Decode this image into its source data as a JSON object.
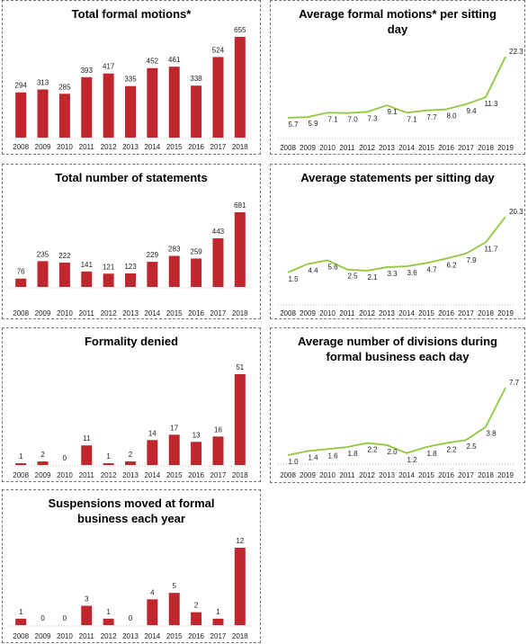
{
  "chart_data": [
    {
      "type": "bar",
      "title": "Total formal motions*",
      "color": "#c0272d",
      "categories": [
        "2008",
        "2009",
        "2010",
        "2011",
        "2012",
        "2013",
        "2014",
        "2015",
        "2016",
        "2017",
        "2018"
      ],
      "values": [
        294,
        313,
        285,
        393,
        417,
        335,
        452,
        461,
        338,
        524,
        655
      ]
    },
    {
      "type": "line",
      "title": "Average formal motions* per sitting day",
      "color": "#92c83e",
      "categories": [
        "2008",
        "2009",
        "2010",
        "2011",
        "2012",
        "2013",
        "2014",
        "2015",
        "2016",
        "2017",
        "2018",
        "2019"
      ],
      "values": [
        5.7,
        5.9,
        7.1,
        7,
        7.3,
        9.1,
        7.1,
        7.7,
        8,
        9.4,
        11.3,
        22.3
      ],
      "value_labels": [
        "5.7",
        "5.9",
        "7.1",
        "7.0",
        "7.3",
        "9.1",
        "7.1",
        "7.7",
        "8.0",
        "9.4",
        "11.3",
        "22.3"
      ]
    },
    {
      "type": "bar",
      "title": "Total number of statements",
      "color": "#c0272d",
      "categories": [
        "2008",
        "2009",
        "2010",
        "2011",
        "2012",
        "2013",
        "2014",
        "2015",
        "2016",
        "2017",
        "2018"
      ],
      "values": [
        76,
        235,
        222,
        141,
        121,
        123,
        229,
        283,
        259,
        443,
        681
      ]
    },
    {
      "type": "line",
      "title": "Average statements per sitting day",
      "color": "#92c83e",
      "categories": [
        "2008",
        "2009",
        "2010",
        "2011",
        "2012",
        "2013",
        "2014",
        "2015",
        "2016",
        "2017",
        "2018",
        "2019"
      ],
      "values": [
        1.5,
        4.4,
        5.6,
        2.5,
        2.1,
        3.3,
        3.6,
        4.7,
        6.2,
        7.9,
        11.7,
        20.3
      ]
    },
    {
      "type": "bar",
      "title": "Formality denied",
      "color": "#c0272d",
      "categories": [
        "2008",
        "2009",
        "2010",
        "2011",
        "2012",
        "2013",
        "2014",
        "2015",
        "2016",
        "2017",
        "2018"
      ],
      "values": [
        1,
        2,
        0,
        11,
        1,
        2,
        14,
        17,
        13,
        16,
        51
      ]
    },
    {
      "type": "line",
      "title": "Average number of divisions during formal business each day",
      "color": "#92c83e",
      "categories": [
        "2008",
        "2009",
        "2010",
        "2011",
        "2012",
        "2013",
        "2014",
        "2015",
        "2016",
        "2017",
        "2018",
        "2019"
      ],
      "values": [
        1,
        1.4,
        1.6,
        1.8,
        2.2,
        2,
        1.2,
        1.8,
        2.2,
        2.5,
        3.8,
        7.7
      ],
      "value_labels": [
        "1.0",
        "1.4",
        "1.6",
        "1.8",
        "2.2",
        "2.0",
        "1.2",
        "1.8",
        "2.2",
        "2.5",
        "3.8",
        "7.7"
      ]
    },
    {
      "type": "bar",
      "title": "Suspensions moved at formal business each year",
      "color": "#c0272d",
      "categories": [
        "2008",
        "2009",
        "2010",
        "2011",
        "2012",
        "2013",
        "2014",
        "2015",
        "2016",
        "2017",
        "2018"
      ],
      "values": [
        1,
        0,
        0,
        3,
        1,
        0,
        4,
        5,
        2,
        1,
        12
      ]
    }
  ]
}
